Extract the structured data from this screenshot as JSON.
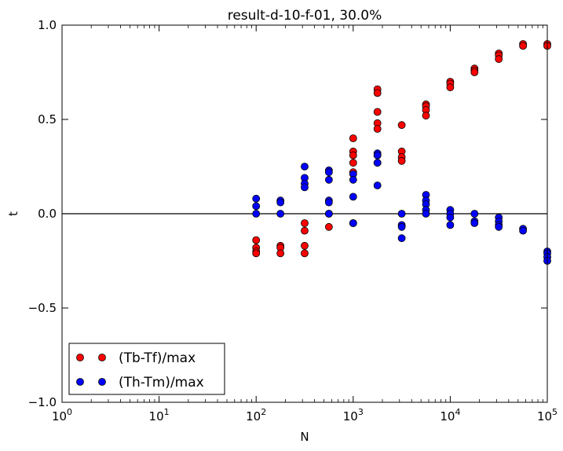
{
  "chart_data": {
    "type": "scatter",
    "title": "result-d-10-f-01, 30.0%",
    "xlabel": "N",
    "ylabel": "t",
    "xscale": "log",
    "xlim": [
      1,
      100000
    ],
    "ylim": [
      -1.0,
      1.0
    ],
    "x_ticks": [
      {
        "value": 1,
        "base": "10",
        "exp": "0"
      },
      {
        "value": 10,
        "base": "10",
        "exp": "1"
      },
      {
        "value": 100,
        "base": "10",
        "exp": "2"
      },
      {
        "value": 1000,
        "base": "10",
        "exp": "3"
      },
      {
        "value": 10000,
        "base": "10",
        "exp": "4"
      },
      {
        "value": 100000,
        "base": "10",
        "exp": "5"
      }
    ],
    "y_ticks": [
      {
        "value": -1.0,
        "label": "−1.0"
      },
      {
        "value": -0.5,
        "label": "−0.5"
      },
      {
        "value": 0.0,
        "label": "0.0"
      },
      {
        "value": 0.5,
        "label": "0.5"
      },
      {
        "value": 1.0,
        "label": "1.0"
      }
    ],
    "reference_line_y": 0,
    "grid": false,
    "legend_position": "bottom-left",
    "series": [
      {
        "name": "(Tb-Tf)/max",
        "color": "#ff0000",
        "points": [
          [
            100,
            -0.14
          ],
          [
            100,
            -0.18
          ],
          [
            100,
            -0.2
          ],
          [
            100,
            -0.21
          ],
          [
            178,
            -0.17
          ],
          [
            178,
            -0.18
          ],
          [
            178,
            -0.21
          ],
          [
            316,
            -0.05
          ],
          [
            316,
            -0.09
          ],
          [
            316,
            -0.17
          ],
          [
            316,
            -0.21
          ],
          [
            562,
            0.0
          ],
          [
            562,
            -0.07
          ],
          [
            1000,
            0.4
          ],
          [
            1000,
            0.33
          ],
          [
            1000,
            0.31
          ],
          [
            1000,
            0.27
          ],
          [
            1000,
            0.22
          ],
          [
            1000,
            -0.05
          ],
          [
            1778,
            0.66
          ],
          [
            1778,
            0.64
          ],
          [
            1778,
            0.54
          ],
          [
            1778,
            0.48
          ],
          [
            1778,
            0.45
          ],
          [
            1778,
            0.31
          ],
          [
            1778,
            0.27
          ],
          [
            3162,
            0.47
          ],
          [
            3162,
            0.33
          ],
          [
            3162,
            0.3
          ],
          [
            3162,
            0.28
          ],
          [
            5623,
            0.58
          ],
          [
            5623,
            0.57
          ],
          [
            5623,
            0.55
          ],
          [
            5623,
            0.52
          ],
          [
            10000,
            0.7
          ],
          [
            10000,
            0.69
          ],
          [
            10000,
            0.67
          ],
          [
            17783,
            0.77
          ],
          [
            17783,
            0.76
          ],
          [
            17783,
            0.75
          ],
          [
            31623,
            0.85
          ],
          [
            31623,
            0.84
          ],
          [
            31623,
            0.82
          ],
          [
            56234,
            0.9
          ],
          [
            56234,
            0.89
          ],
          [
            100000,
            0.9
          ],
          [
            100000,
            0.89
          ]
        ]
      },
      {
        "name": "(Th-Tm)/max",
        "color": "#0000ff",
        "points": [
          [
            100,
            0.08
          ],
          [
            100,
            0.04
          ],
          [
            100,
            0.0
          ],
          [
            178,
            0.07
          ],
          [
            178,
            0.06
          ],
          [
            178,
            0.0
          ],
          [
            316,
            0.25
          ],
          [
            316,
            0.19
          ],
          [
            316,
            0.16
          ],
          [
            316,
            0.14
          ],
          [
            562,
            0.23
          ],
          [
            562,
            0.22
          ],
          [
            562,
            0.18
          ],
          [
            562,
            0.07
          ],
          [
            562,
            0.06
          ],
          [
            562,
            0.0
          ],
          [
            1000,
            0.21
          ],
          [
            1000,
            0.18
          ],
          [
            1000,
            0.09
          ],
          [
            1000,
            -0.05
          ],
          [
            1778,
            0.32
          ],
          [
            1778,
            0.31
          ],
          [
            1778,
            0.27
          ],
          [
            1778,
            0.15
          ],
          [
            3162,
            0.0
          ],
          [
            3162,
            -0.06
          ],
          [
            3162,
            -0.07
          ],
          [
            3162,
            -0.13
          ],
          [
            5623,
            0.1
          ],
          [
            5623,
            0.07
          ],
          [
            5623,
            0.05
          ],
          [
            5623,
            0.02
          ],
          [
            5623,
            0.0
          ],
          [
            10000,
            0.02
          ],
          [
            10000,
            0.0
          ],
          [
            10000,
            -0.02
          ],
          [
            10000,
            -0.06
          ],
          [
            17783,
            0.0
          ],
          [
            17783,
            -0.04
          ],
          [
            17783,
            -0.05
          ],
          [
            31623,
            -0.02
          ],
          [
            31623,
            -0.04
          ],
          [
            31623,
            -0.06
          ],
          [
            31623,
            -0.07
          ],
          [
            56234,
            -0.08
          ],
          [
            56234,
            -0.09
          ],
          [
            100000,
            -0.2
          ],
          [
            100000,
            -0.21
          ],
          [
            100000,
            -0.23
          ],
          [
            100000,
            -0.25
          ]
        ]
      }
    ]
  }
}
